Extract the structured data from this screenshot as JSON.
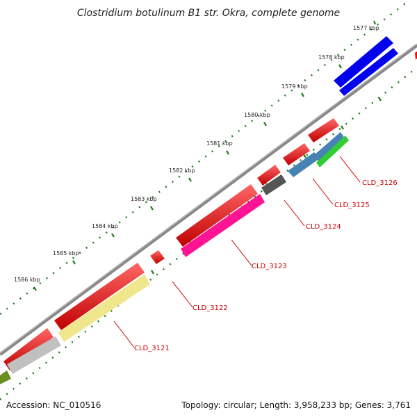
{
  "title": "Clostridium botulinum B1 str. Okra, complete genome",
  "ticks": [
    "1577 kbp",
    "1578 kbp",
    "1579 kbp",
    "1580 kbp",
    "1581 kbp",
    "1582 kbp",
    "1583 kbp",
    "1584 kbp",
    "1585 kbp",
    "1586 kbp"
  ],
  "gene_labels": [
    "CLD_3126",
    "CLD_3125",
    "CLD_3124",
    "CLD_3123",
    "CLD_3122",
    "CLD_3121"
  ],
  "colors": {
    "backbone": "#808080",
    "tick_dots": "#1f7a1f",
    "label_red": "#cc0000",
    "feature_red": "#ff0000",
    "feature_blue": "#0000ee",
    "feature_magenta": "#ff1493",
    "feature_yellow": "#f0e68c",
    "feature_steelblue": "#4682b4",
    "feature_green": "#32cd32",
    "feature_darkgray": "#555555",
    "feature_silver": "#c0c0c0",
    "feature_olive": "#6b8e23"
  },
  "footer": {
    "accession": "Accession: NC_010516",
    "summary": "Topology: circular; Length: 3,958,233 bp; Genes: 3,761"
  }
}
